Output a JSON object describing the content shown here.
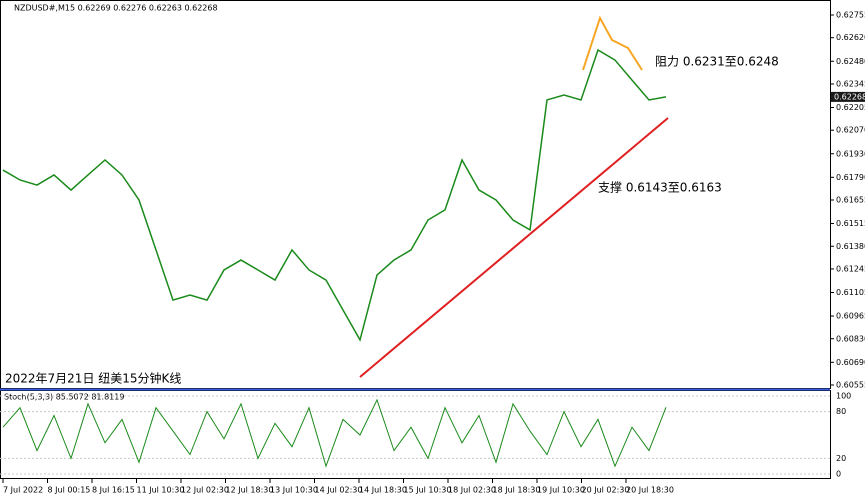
{
  "chart_data": {
    "type": "line",
    "header": "NZDUSD#,M15  0.62269 0.62276 0.62263 0.62268",
    "annotations": [
      "阻力 0.6231至0.6248",
      "支撑 0.6143至0.6163",
      "2022年7月21日 纽美15分钟K线"
    ],
    "ylim": [
      0.60555,
      0.62755
    ],
    "yticks": [
      {
        "value": 0.62755,
        "label": "0.62755"
      },
      {
        "value": 0.6262,
        "label": "0.62620"
      },
      {
        "value": 0.6248,
        "label": "0.62480"
      },
      {
        "value": 0.62345,
        "label": "0.62345"
      },
      {
        "value": 0.62205,
        "label": "0.62205"
      },
      {
        "value": 0.6207,
        "label": "0.62070"
      },
      {
        "value": 0.6193,
        "label": "0.61930"
      },
      {
        "value": 0.6179,
        "label": "0.61790"
      },
      {
        "value": 0.61655,
        "label": "0.61655"
      },
      {
        "value": 0.61515,
        "label": "0.61515"
      },
      {
        "value": 0.6138,
        "label": "0.61380"
      },
      {
        "value": 0.61245,
        "label": "0.61245"
      },
      {
        "value": 0.61105,
        "label": "0.61105"
      },
      {
        "value": 0.60965,
        "label": "0.60965"
      },
      {
        "value": 0.6083,
        "label": "0.60830"
      },
      {
        "value": 0.6069,
        "label": "0.60690"
      },
      {
        "value": {
          "value": 0.60555,
          "label": "0.60555"
        },
        "label": "0.60555"
      }
    ],
    "current_price": {
      "value": 0.62268,
      "label": "0.62268"
    },
    "xlabels": [
      "7 Jul 2022",
      "8 Jul 00:15",
      "8 Jul 16:15",
      "11 Jul 10:30",
      "12 Jul 02:30",
      "12 Jul 18:30",
      "13 Jul 10:30",
      "14 Jul 02:30",
      "14 Jul 18:30",
      "15 Jul 10:30",
      "18 Jul 02:30",
      "18 Jul 18:30",
      "19 Jul 10:30",
      "20 Jul 02:30",
      "20 Jul 18:30"
    ],
    "series": [
      {
        "name": "NZDUSD#,M15",
        "color": "#1a8a1a",
        "values": [
          0.61833,
          0.61774,
          0.61744,
          0.61804,
          0.61714,
          0.61804,
          0.61893,
          0.61804,
          0.61655,
          0.61358,
          0.6106,
          0.6109,
          0.6106,
          0.61239,
          0.61298,
          0.61239,
          0.61179,
          0.61358,
          0.61239,
          0.61179,
          0.61001,
          0.60823,
          0.61209,
          0.61298,
          0.61358,
          0.61536,
          0.61596,
          0.61893,
          0.61714,
          0.61655,
          0.61536,
          0.61477,
          0.6225,
          0.62279,
          0.6225,
          0.62547,
          0.62487,
          0.62368,
          0.6225,
          0.62268
        ]
      }
    ],
    "stoch": {
      "title": "Stoch(5,3,3) 85.5072 81.8119",
      "color": "#1a8a1a",
      "ylim": [
        0,
        100
      ],
      "yticks": [
        100,
        80,
        20,
        0
      ],
      "values": [
        60,
        85,
        30,
        75,
        20,
        90,
        40,
        70,
        15,
        85,
        55,
        25,
        80,
        45,
        90,
        20,
        65,
        35,
        85,
        10,
        70,
        50,
        95,
        30,
        60,
        20,
        85,
        40,
        75,
        15,
        90,
        55,
        25,
        80,
        35,
        70,
        10,
        60,
        30,
        85.5072
      ]
    }
  }
}
